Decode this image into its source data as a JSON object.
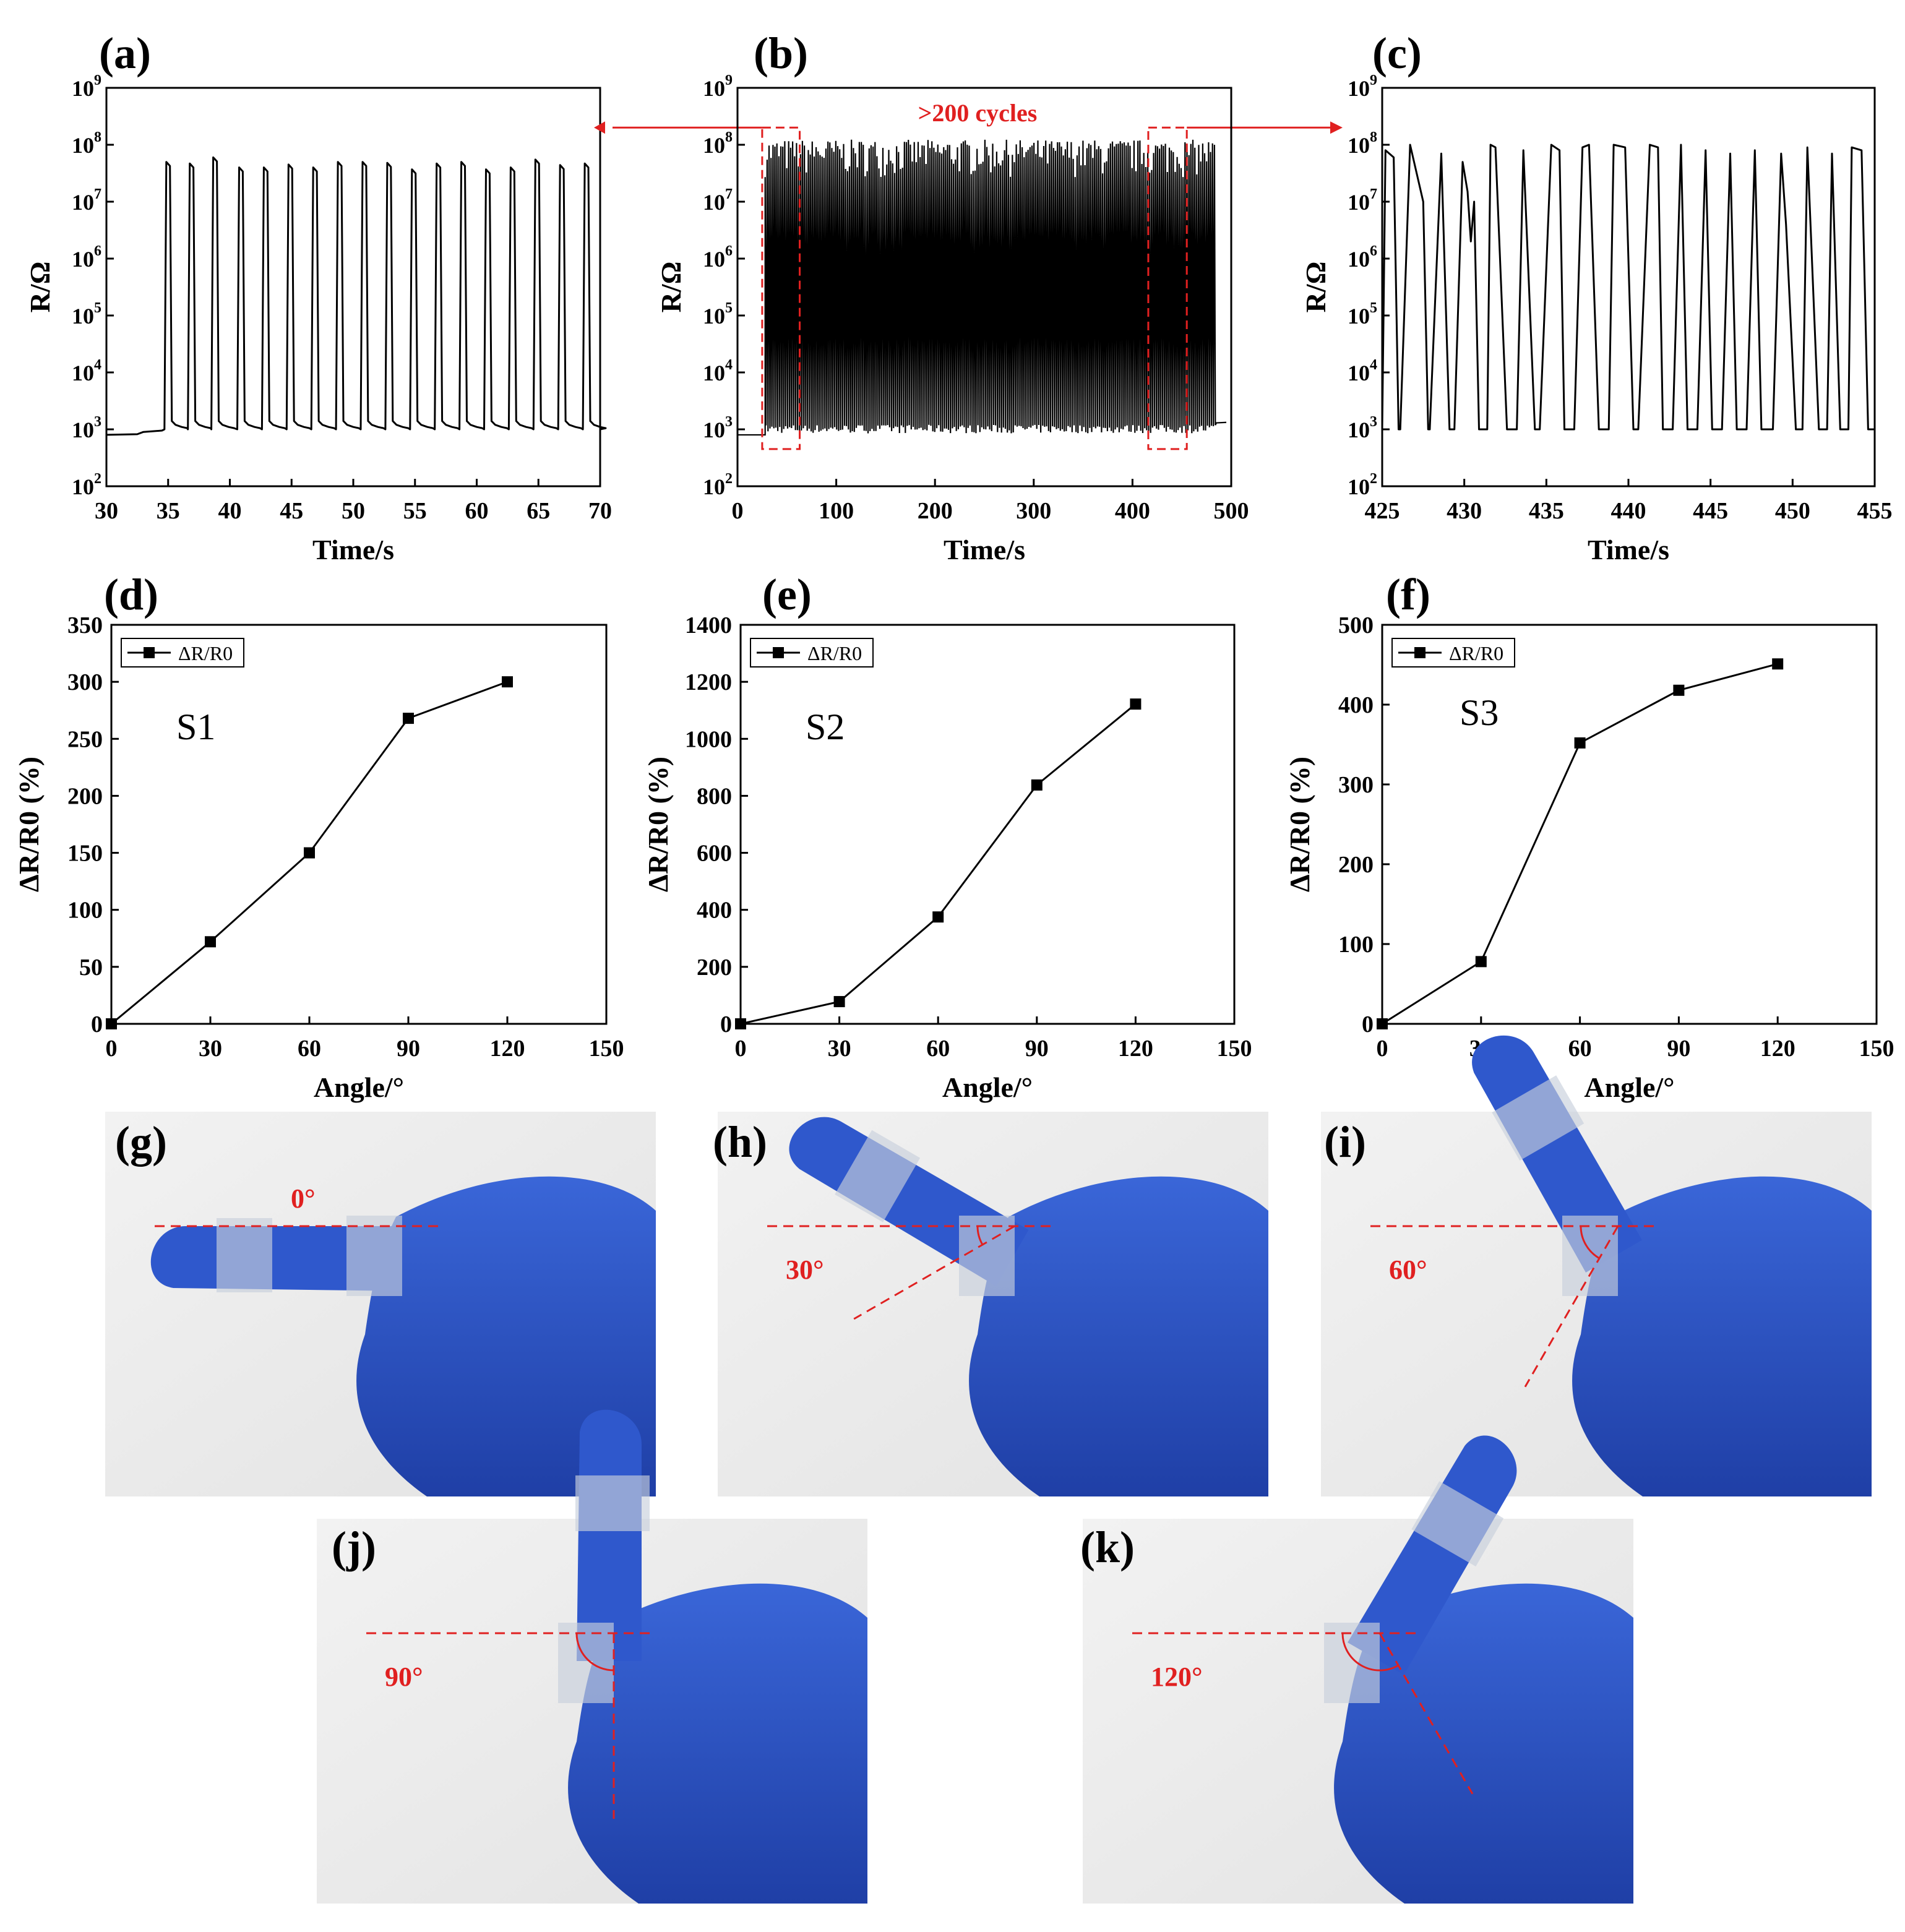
{
  "panel_labels": {
    "a": "(a)",
    "b": "(b)",
    "c": "(c)",
    "d": "(d)",
    "e": "(e)",
    "f": "(f)",
    "g": "(g)",
    "h": "(h)",
    "i": "(i)",
    "j": "(j)",
    "k": "(k)"
  },
  "annotation_cycles": ">200 cycles",
  "colors": {
    "line": "#000000",
    "annotation": "#e02020",
    "glove": "#2d55c8",
    "background_photo": "#eeeeee"
  },
  "photos": [
    {
      "id": "g",
      "angle_label": "0°",
      "angle": 0
    },
    {
      "id": "h",
      "angle_label": "30°",
      "angle": 30
    },
    {
      "id": "i",
      "angle_label": "60°",
      "angle": 60
    },
    {
      "id": "j",
      "angle_label": "90°",
      "angle": 90
    },
    {
      "id": "k",
      "angle_label": "120°",
      "angle": 120
    }
  ],
  "chart_data": [
    {
      "id": "a",
      "type": "line",
      "title": "",
      "xlabel": "Time/s",
      "ylabel": "R/Ω",
      "xlim": [
        30,
        70
      ],
      "xticks": [
        30,
        35,
        40,
        45,
        50,
        55,
        60,
        65,
        70
      ],
      "yscale": "log",
      "ylim": [
        100,
        1000000000
      ],
      "yticks": [
        {
          "base": "10",
          "exp": "2"
        },
        {
          "base": "10",
          "exp": "3"
        },
        {
          "base": "10",
          "exp": "4"
        },
        {
          "base": "10",
          "exp": "5"
        },
        {
          "base": "10",
          "exp": "6"
        },
        {
          "base": "10",
          "exp": "7"
        },
        {
          "base": "10",
          "exp": "8"
        },
        {
          "base": "10",
          "exp": "9"
        }
      ],
      "series": [
        {
          "baseline": {
            "x": [
              30,
              32.5,
              33,
              34.5
            ],
            "y": [
              800,
              820,
              900,
              950
            ]
          },
          "pulses": [
            [
              34.7,
              3.3,
              50000000
            ],
            [
              36.6,
              3.1,
              47000000
            ],
            [
              38.5,
              3.1,
              60000000
            ],
            [
              40.6,
              3.05,
              40000000
            ],
            [
              42.6,
              3.05,
              40000000
            ],
            [
              44.6,
              3.05,
              45000000
            ],
            [
              46.6,
              3.1,
              40000000
            ],
            [
              48.6,
              3.0,
              50000000
            ],
            [
              50.6,
              3.0,
              50000000
            ],
            [
              52.6,
              3.0,
              48000000
            ],
            [
              54.6,
              3.0,
              37000000
            ],
            [
              56.6,
              3.0,
              47000000
            ],
            [
              58.6,
              3.0,
              50000000
            ],
            [
              60.6,
              3.0,
              37000000
            ],
            [
              62.6,
              3.0,
              40000000
            ],
            [
              64.6,
              3.0,
              55000000
            ],
            [
              66.6,
              3.0,
              44000000
            ],
            [
              68.6,
              3.0,
              47000000
            ]
          ]
        }
      ]
    },
    {
      "id": "b",
      "type": "line",
      "title": "",
      "xlabel": "Time/s",
      "ylabel": "R/Ω",
      "xlim": [
        0,
        500
      ],
      "xticks": [
        0,
        100,
        200,
        300,
        400,
        500
      ],
      "yscale": "log",
      "ylim": [
        100,
        1000000000
      ],
      "yticks": [
        {
          "base": "10",
          "exp": "2"
        },
        {
          "base": "10",
          "exp": "3"
        },
        {
          "base": "10",
          "exp": "4"
        },
        {
          "base": "10",
          "exp": "5"
        },
        {
          "base": "10",
          "exp": "6"
        },
        {
          "base": "10",
          "exp": "7"
        },
        {
          "base": "10",
          "exp": "8"
        },
        {
          "base": "10",
          "exp": "9"
        }
      ],
      "dense_signal": {
        "start": 28,
        "end": 485,
        "low": 1000,
        "high": 60000000,
        "cycles": 230,
        "pre_level": 800,
        "post_level": 1300
      },
      "highlight_windows": [
        [
          25,
          63
        ],
        [
          416,
          455
        ]
      ]
    },
    {
      "id": "c",
      "type": "line",
      "title": "",
      "xlabel": "Time/s",
      "ylabel": "R/Ω",
      "xlim": [
        425,
        455
      ],
      "xticks": [
        425,
        430,
        435,
        440,
        445,
        450,
        455
      ],
      "yscale": "log",
      "ylim": [
        100,
        1000000000
      ],
      "yticks": [
        {
          "base": "10",
          "exp": "2"
        },
        {
          "base": "10",
          "exp": "3"
        },
        {
          "base": "10",
          "exp": "4"
        },
        {
          "base": "10",
          "exp": "5"
        },
        {
          "base": "10",
          "exp": "6"
        },
        {
          "base": "10",
          "exp": "7"
        },
        {
          "base": "10",
          "exp": "8"
        },
        {
          "base": "10",
          "exp": "9"
        }
      ],
      "series": [
        {
          "x": [
            425,
            425.2,
            425.7,
            426,
            426.1,
            426.7,
            427.5,
            427.8,
            427.9,
            428.6,
            429.1,
            429.4,
            429.9,
            430.2,
            430.4,
            430.6,
            430.9,
            431.4,
            431.6,
            431.9,
            432.6,
            433.2,
            433.6,
            434.3,
            434.6,
            435.3,
            435.8,
            436.1,
            436.7,
            437.2,
            437.6,
            438.2,
            438.8,
            439.1,
            439.8,
            440.3,
            440.6,
            441.3,
            441.8,
            442.1,
            442.7,
            443.2,
            443.6,
            444.2,
            444.7,
            445.1,
            445.7,
            446.2,
            446.6,
            447.2,
            447.7,
            448.1,
            448.8,
            449.3,
            449.6,
            450.2,
            450.6,
            450.9,
            451.6,
            452.1,
            452.4,
            452.9,
            453.4,
            453.6,
            454.2,
            454.6,
            455
          ],
          "y": [
            1000,
            80000000,
            60000000,
            1000,
            1000,
            100000000,
            10000000,
            1000,
            1000,
            70000000,
            1000,
            1000,
            50000000,
            15000000,
            2000000,
            10000000,
            1000,
            1000,
            100000000,
            90000000,
            1000,
            1000,
            80000000,
            1000,
            1000,
            100000000,
            80000000,
            1000,
            1000,
            90000000,
            100000000,
            1000,
            1000,
            100000000,
            90000000,
            1000,
            1000,
            100000000,
            90000000,
            1000,
            1000,
            100000000,
            1000,
            1000,
            80000000,
            1000,
            1000,
            70000000,
            1000,
            1000,
            80000000,
            1000,
            1000,
            70000000,
            4000000,
            1000,
            1000,
            90000000,
            1000,
            1000,
            70000000,
            1000,
            1000,
            90000000,
            80000000,
            1000,
            1000
          ]
        }
      ]
    },
    {
      "id": "d",
      "type": "line",
      "title": "",
      "xlabel": "Angle/°",
      "ylabel": "ΔR/R0 (%)",
      "xlim": [
        0,
        150
      ],
      "ylim": [
        0,
        350
      ],
      "xticks": [
        0,
        30,
        60,
        90,
        120,
        150
      ],
      "yticks": [
        0,
        50,
        100,
        150,
        200,
        250,
        300,
        350
      ],
      "legend": "top-left",
      "annotation": "S1",
      "series": [
        {
          "name": "ΔR/R0",
          "x": [
            0,
            30,
            60,
            90,
            120
          ],
          "y": [
            0,
            72,
            150,
            268,
            300
          ]
        }
      ]
    },
    {
      "id": "e",
      "type": "line",
      "title": "",
      "xlabel": "Angle/°",
      "ylabel": "ΔR/R0 (%)",
      "xlim": [
        0,
        150
      ],
      "ylim": [
        0,
        1400
      ],
      "xticks": [
        0,
        30,
        60,
        90,
        120,
        150
      ],
      "yticks": [
        0,
        200,
        400,
        600,
        800,
        1000,
        1200,
        1400
      ],
      "legend": "top-left",
      "annotation": "S2",
      "series": [
        {
          "name": "ΔR/R0",
          "x": [
            0,
            30,
            60,
            90,
            120
          ],
          "y": [
            0,
            78,
            375,
            838,
            1122
          ]
        }
      ]
    },
    {
      "id": "f",
      "type": "line",
      "title": "",
      "xlabel": "Angle/°",
      "ylabel": "ΔR/R0 (%)",
      "xlim": [
        0,
        150
      ],
      "ylim": [
        0,
        500
      ],
      "xticks": [
        0,
        30,
        60,
        90,
        120,
        150
      ],
      "yticks": [
        0,
        100,
        200,
        300,
        400,
        500
      ],
      "legend": "top-left",
      "annotation": "S3",
      "series": [
        {
          "name": "ΔR/R0",
          "x": [
            0,
            30,
            60,
            90,
            120
          ],
          "y": [
            0,
            78,
            352,
            418,
            451
          ]
        }
      ]
    }
  ]
}
